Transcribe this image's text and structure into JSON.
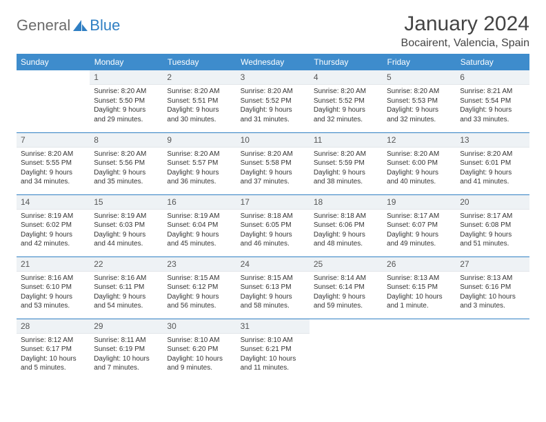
{
  "brand": {
    "general": "General",
    "blue": "Blue",
    "accent": "#2f7fc3"
  },
  "title": "January 2024",
  "location": "Bocairent, Valencia, Spain",
  "colors": {
    "header_bg": "#3e8ccc",
    "header_text": "#ffffff",
    "daynum_bg": "#eef2f5",
    "week_border": "#2f7fc3",
    "body_text": "#333333"
  },
  "weekdays": [
    "Sunday",
    "Monday",
    "Tuesday",
    "Wednesday",
    "Thursday",
    "Friday",
    "Saturday"
  ],
  "weeks": [
    [
      null,
      {
        "n": "1",
        "sr": "Sunrise: 8:20 AM",
        "ss": "Sunset: 5:50 PM",
        "dl": "Daylight: 9 hours and 29 minutes."
      },
      {
        "n": "2",
        "sr": "Sunrise: 8:20 AM",
        "ss": "Sunset: 5:51 PM",
        "dl": "Daylight: 9 hours and 30 minutes."
      },
      {
        "n": "3",
        "sr": "Sunrise: 8:20 AM",
        "ss": "Sunset: 5:52 PM",
        "dl": "Daylight: 9 hours and 31 minutes."
      },
      {
        "n": "4",
        "sr": "Sunrise: 8:20 AM",
        "ss": "Sunset: 5:52 PM",
        "dl": "Daylight: 9 hours and 32 minutes."
      },
      {
        "n": "5",
        "sr": "Sunrise: 8:20 AM",
        "ss": "Sunset: 5:53 PM",
        "dl": "Daylight: 9 hours and 32 minutes."
      },
      {
        "n": "6",
        "sr": "Sunrise: 8:21 AM",
        "ss": "Sunset: 5:54 PM",
        "dl": "Daylight: 9 hours and 33 minutes."
      }
    ],
    [
      {
        "n": "7",
        "sr": "Sunrise: 8:20 AM",
        "ss": "Sunset: 5:55 PM",
        "dl": "Daylight: 9 hours and 34 minutes."
      },
      {
        "n": "8",
        "sr": "Sunrise: 8:20 AM",
        "ss": "Sunset: 5:56 PM",
        "dl": "Daylight: 9 hours and 35 minutes."
      },
      {
        "n": "9",
        "sr": "Sunrise: 8:20 AM",
        "ss": "Sunset: 5:57 PM",
        "dl": "Daylight: 9 hours and 36 minutes."
      },
      {
        "n": "10",
        "sr": "Sunrise: 8:20 AM",
        "ss": "Sunset: 5:58 PM",
        "dl": "Daylight: 9 hours and 37 minutes."
      },
      {
        "n": "11",
        "sr": "Sunrise: 8:20 AM",
        "ss": "Sunset: 5:59 PM",
        "dl": "Daylight: 9 hours and 38 minutes."
      },
      {
        "n": "12",
        "sr": "Sunrise: 8:20 AM",
        "ss": "Sunset: 6:00 PM",
        "dl": "Daylight: 9 hours and 40 minutes."
      },
      {
        "n": "13",
        "sr": "Sunrise: 8:20 AM",
        "ss": "Sunset: 6:01 PM",
        "dl": "Daylight: 9 hours and 41 minutes."
      }
    ],
    [
      {
        "n": "14",
        "sr": "Sunrise: 8:19 AM",
        "ss": "Sunset: 6:02 PM",
        "dl": "Daylight: 9 hours and 42 minutes."
      },
      {
        "n": "15",
        "sr": "Sunrise: 8:19 AM",
        "ss": "Sunset: 6:03 PM",
        "dl": "Daylight: 9 hours and 44 minutes."
      },
      {
        "n": "16",
        "sr": "Sunrise: 8:19 AM",
        "ss": "Sunset: 6:04 PM",
        "dl": "Daylight: 9 hours and 45 minutes."
      },
      {
        "n": "17",
        "sr": "Sunrise: 8:18 AM",
        "ss": "Sunset: 6:05 PM",
        "dl": "Daylight: 9 hours and 46 minutes."
      },
      {
        "n": "18",
        "sr": "Sunrise: 8:18 AM",
        "ss": "Sunset: 6:06 PM",
        "dl": "Daylight: 9 hours and 48 minutes."
      },
      {
        "n": "19",
        "sr": "Sunrise: 8:17 AM",
        "ss": "Sunset: 6:07 PM",
        "dl": "Daylight: 9 hours and 49 minutes."
      },
      {
        "n": "20",
        "sr": "Sunrise: 8:17 AM",
        "ss": "Sunset: 6:08 PM",
        "dl": "Daylight: 9 hours and 51 minutes."
      }
    ],
    [
      {
        "n": "21",
        "sr": "Sunrise: 8:16 AM",
        "ss": "Sunset: 6:10 PM",
        "dl": "Daylight: 9 hours and 53 minutes."
      },
      {
        "n": "22",
        "sr": "Sunrise: 8:16 AM",
        "ss": "Sunset: 6:11 PM",
        "dl": "Daylight: 9 hours and 54 minutes."
      },
      {
        "n": "23",
        "sr": "Sunrise: 8:15 AM",
        "ss": "Sunset: 6:12 PM",
        "dl": "Daylight: 9 hours and 56 minutes."
      },
      {
        "n": "24",
        "sr": "Sunrise: 8:15 AM",
        "ss": "Sunset: 6:13 PM",
        "dl": "Daylight: 9 hours and 58 minutes."
      },
      {
        "n": "25",
        "sr": "Sunrise: 8:14 AM",
        "ss": "Sunset: 6:14 PM",
        "dl": "Daylight: 9 hours and 59 minutes."
      },
      {
        "n": "26",
        "sr": "Sunrise: 8:13 AM",
        "ss": "Sunset: 6:15 PM",
        "dl": "Daylight: 10 hours and 1 minute."
      },
      {
        "n": "27",
        "sr": "Sunrise: 8:13 AM",
        "ss": "Sunset: 6:16 PM",
        "dl": "Daylight: 10 hours and 3 minutes."
      }
    ],
    [
      {
        "n": "28",
        "sr": "Sunrise: 8:12 AM",
        "ss": "Sunset: 6:17 PM",
        "dl": "Daylight: 10 hours and 5 minutes."
      },
      {
        "n": "29",
        "sr": "Sunrise: 8:11 AM",
        "ss": "Sunset: 6:19 PM",
        "dl": "Daylight: 10 hours and 7 minutes."
      },
      {
        "n": "30",
        "sr": "Sunrise: 8:10 AM",
        "ss": "Sunset: 6:20 PM",
        "dl": "Daylight: 10 hours and 9 minutes."
      },
      {
        "n": "31",
        "sr": "Sunrise: 8:10 AM",
        "ss": "Sunset: 6:21 PM",
        "dl": "Daylight: 10 hours and 11 minutes."
      },
      null,
      null,
      null
    ]
  ]
}
